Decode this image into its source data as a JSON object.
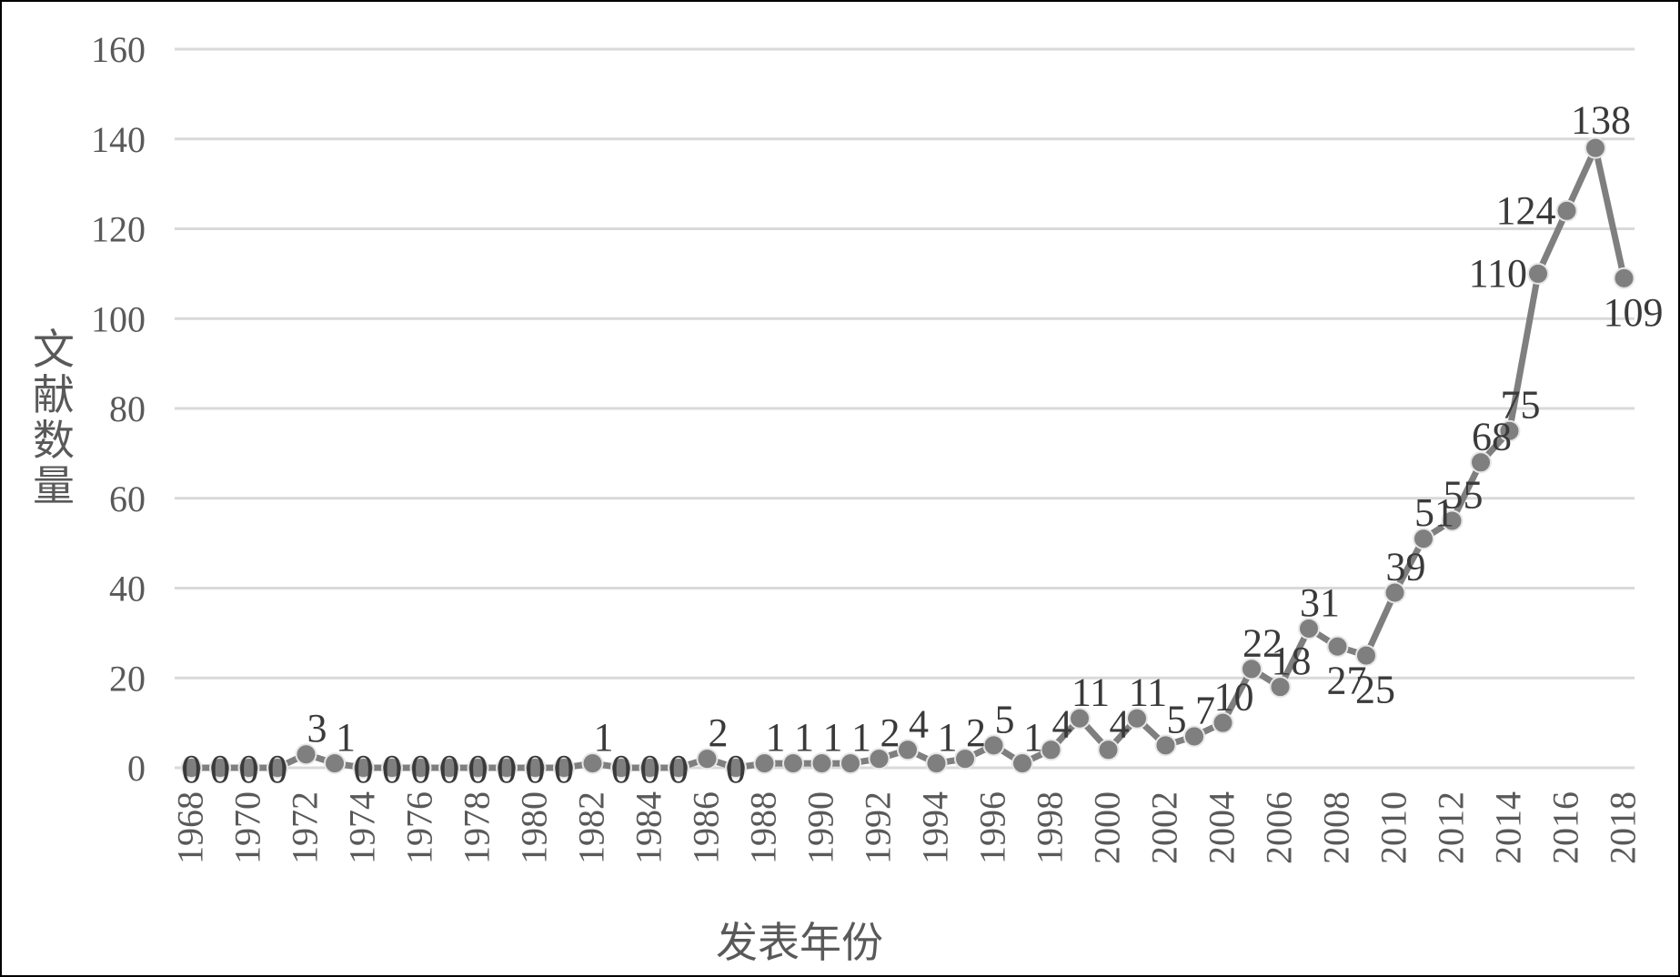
{
  "chart_data": {
    "type": "line",
    "title": "",
    "xlabel": "发表年份",
    "ylabel": "文献数量",
    "ylim": [
      0,
      160
    ],
    "yticks": [
      0,
      20,
      40,
      60,
      80,
      100,
      120,
      140,
      160
    ],
    "grid": true,
    "legend": "none",
    "x_tick_labels": [
      "1968",
      "1970",
      "1972",
      "1974",
      "1976",
      "1978",
      "1980",
      "1982",
      "1984",
      "1986",
      "1988",
      "1990",
      "1992",
      "1994",
      "1996",
      "1998",
      "2000",
      "2002",
      "2004",
      "2006",
      "2008",
      "2010",
      "2012",
      "2014",
      "2016",
      "2018"
    ],
    "categories": [
      1968,
      1969,
      1970,
      1971,
      1972,
      1973,
      1974,
      1975,
      1976,
      1977,
      1978,
      1979,
      1980,
      1981,
      1982,
      1983,
      1984,
      1985,
      1986,
      1987,
      1988,
      1989,
      1990,
      1991,
      1992,
      1993,
      1994,
      1995,
      1996,
      1997,
      1998,
      1999,
      2000,
      2001,
      2002,
      2003,
      2004,
      2005,
      2006,
      2007,
      2008,
      2009,
      2010,
      2011,
      2012,
      2013,
      2014,
      2015,
      2016,
      2017,
      2018
    ],
    "series": [
      {
        "values": [
          0,
          0,
          0,
          0,
          3,
          1,
          0,
          0,
          0,
          0,
          0,
          0,
          0,
          0,
          1,
          0,
          0,
          0,
          2,
          0,
          1,
          1,
          1,
          1,
          2,
          4,
          1,
          2,
          5,
          1,
          4,
          11,
          4,
          11,
          5,
          7,
          10,
          22,
          18,
          31,
          27,
          25,
          39,
          51,
          55,
          68,
          75,
          110,
          124,
          138,
          109
        ],
        "color": "#7f7f7f"
      }
    ]
  }
}
